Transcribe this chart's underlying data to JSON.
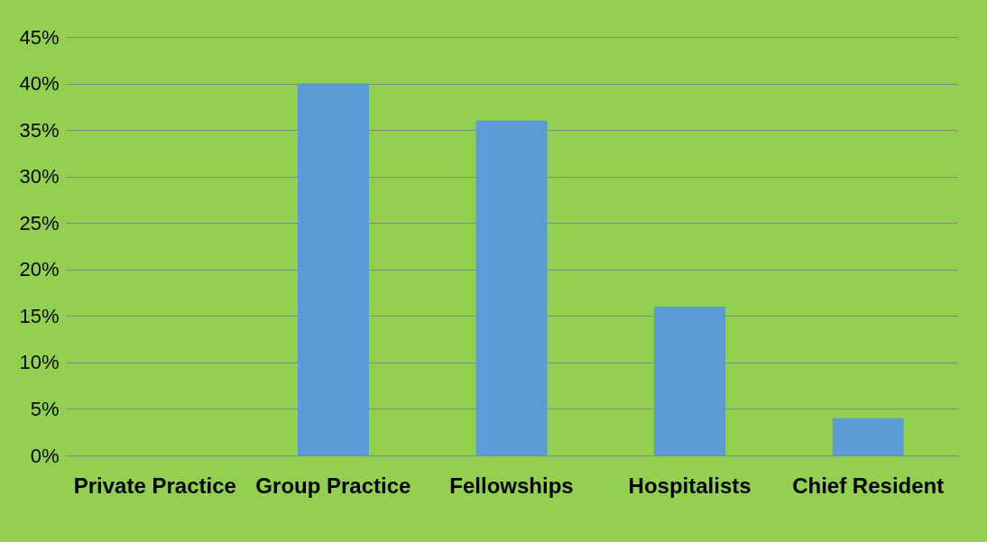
{
  "chart_data": {
    "type": "bar",
    "categories": [
      "Private Practice",
      "Group Practice",
      "Fellowships",
      "Hospitalists",
      "Chief Resident"
    ],
    "values": [
      0,
      40,
      36,
      16,
      4
    ],
    "color": "#5b9bd5",
    "ylim": [
      0,
      45
    ],
    "yticks": [
      {
        "value": 0,
        "label": "0%"
      },
      {
        "value": 5,
        "label": "5%"
      },
      {
        "value": 10,
        "label": "10%"
      },
      {
        "value": 15,
        "label": "15%"
      },
      {
        "value": 20,
        "label": "20%"
      },
      {
        "value": 25,
        "label": "25%"
      },
      {
        "value": 30,
        "label": "30%"
      },
      {
        "value": 35,
        "label": "35%"
      },
      {
        "value": 40,
        "label": "40%"
      },
      {
        "value": 45,
        "label": "45%"
      }
    ],
    "grid": "y"
  }
}
